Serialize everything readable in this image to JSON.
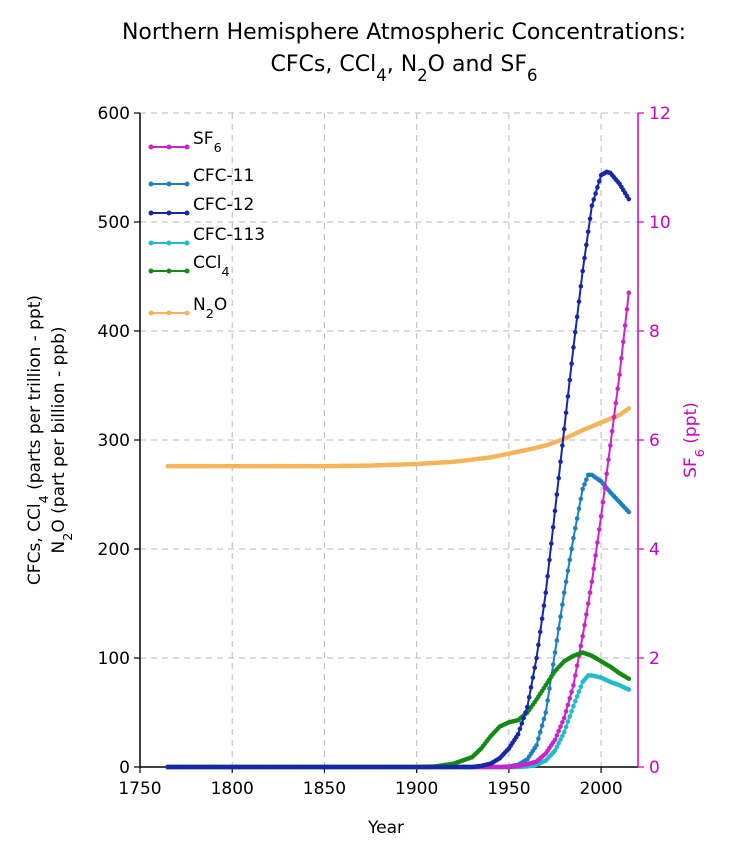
{
  "chart_data": {
    "type": "line",
    "title": "Northern Hemisphere Atmospheric Concentrations:",
    "subtitle": "CFCs, CCl4, N2O and SF6",
    "xlabel": "Year",
    "ylabel_line1": "CFCs, CCl4 (parts per trillion - ppt)",
    "ylabel_line2": "N2O (part per billion - ppb)",
    "y2label": "SF6 (ppt)",
    "xlim": [
      1750,
      2020
    ],
    "ylim": [
      0,
      600
    ],
    "y2lim": [
      0,
      12
    ],
    "x_ticks": [
      1750,
      1800,
      1850,
      1900,
      1950,
      2000
    ],
    "y_ticks": [
      0,
      100,
      200,
      300,
      400,
      500,
      600
    ],
    "y2_ticks": [
      0,
      2,
      4,
      6,
      8,
      10,
      12
    ],
    "grid": true,
    "legend_position": "top-left",
    "series": [
      {
        "name": "SF6",
        "axis": "right",
        "color": "#cc22cc",
        "points": [
          [
            1765,
            0
          ],
          [
            1950,
            0
          ],
          [
            1955,
            0.02
          ],
          [
            1960,
            0.05
          ],
          [
            1965,
            0.1
          ],
          [
            1970,
            0.25
          ],
          [
            1975,
            0.5
          ],
          [
            1980,
            0.9
          ],
          [
            1985,
            1.5
          ],
          [
            1990,
            2.4
          ],
          [
            1995,
            3.4
          ],
          [
            2000,
            4.6
          ],
          [
            2005,
            5.9
          ],
          [
            2010,
            7.2
          ],
          [
            2015,
            8.7
          ]
        ]
      },
      {
        "name": "CFC-11",
        "axis": "left",
        "color": "#1f7ec2",
        "points": [
          [
            1765,
            0
          ],
          [
            1945,
            0
          ],
          [
            1950,
            0.5
          ],
          [
            1955,
            2
          ],
          [
            1960,
            7
          ],
          [
            1965,
            20
          ],
          [
            1970,
            50
          ],
          [
            1975,
            105
          ],
          [
            1980,
            160
          ],
          [
            1985,
            210
          ],
          [
            1990,
            255
          ],
          [
            1993,
            268
          ],
          [
            1995,
            268
          ],
          [
            2000,
            262
          ],
          [
            2005,
            252
          ],
          [
            2010,
            243
          ],
          [
            2015,
            234
          ]
        ]
      },
      {
        "name": "CFC-12",
        "axis": "left",
        "color": "#1428a8",
        "points": [
          [
            1765,
            0
          ],
          [
            1930,
            0
          ],
          [
            1935,
            1
          ],
          [
            1940,
            3
          ],
          [
            1945,
            8
          ],
          [
            1950,
            17
          ],
          [
            1955,
            30
          ],
          [
            1960,
            55
          ],
          [
            1965,
            100
          ],
          [
            1970,
            160
          ],
          [
            1975,
            235
          ],
          [
            1980,
            310
          ],
          [
            1985,
            385
          ],
          [
            1990,
            455
          ],
          [
            1995,
            515
          ],
          [
            2000,
            543
          ],
          [
            2003,
            546
          ],
          [
            2005,
            545
          ],
          [
            2010,
            535
          ],
          [
            2015,
            521
          ]
        ]
      },
      {
        "name": "CFC-113",
        "axis": "left",
        "color": "#22bbcc",
        "points": [
          [
            1765,
            0
          ],
          [
            1955,
            0
          ],
          [
            1960,
            0.5
          ],
          [
            1965,
            2
          ],
          [
            1970,
            6
          ],
          [
            1975,
            15
          ],
          [
            1980,
            32
          ],
          [
            1985,
            56
          ],
          [
            1990,
            78
          ],
          [
            1993,
            84
          ],
          [
            1995,
            84
          ],
          [
            2000,
            82
          ],
          [
            2005,
            78
          ],
          [
            2010,
            75
          ],
          [
            2015,
            71
          ]
        ]
      },
      {
        "name": "CCl4",
        "axis": "left",
        "color": "#138a13",
        "points": [
          [
            1765,
            0
          ],
          [
            1900,
            0
          ],
          [
            1910,
            0.5
          ],
          [
            1920,
            3
          ],
          [
            1930,
            9
          ],
          [
            1935,
            17
          ],
          [
            1940,
            28
          ],
          [
            1945,
            37
          ],
          [
            1950,
            41
          ],
          [
            1955,
            43
          ],
          [
            1960,
            50
          ],
          [
            1965,
            62
          ],
          [
            1970,
            75
          ],
          [
            1975,
            88
          ],
          [
            1980,
            97
          ],
          [
            1985,
            102
          ],
          [
            1990,
            105
          ],
          [
            1995,
            102
          ],
          [
            2000,
            97
          ],
          [
            2005,
            92
          ],
          [
            2010,
            86
          ],
          [
            2015,
            81
          ]
        ]
      },
      {
        "name": "N2O",
        "axis": "left",
        "color": "#f6b45a",
        "points": [
          [
            1765,
            276
          ],
          [
            1800,
            276
          ],
          [
            1850,
            276
          ],
          [
            1875,
            276.5
          ],
          [
            1900,
            278
          ],
          [
            1920,
            280
          ],
          [
            1940,
            284
          ],
          [
            1960,
            291
          ],
          [
            1970,
            295
          ],
          [
            1980,
            301
          ],
          [
            1990,
            309
          ],
          [
            2000,
            316
          ],
          [
            2010,
            323
          ],
          [
            2015,
            329
          ]
        ]
      }
    ]
  }
}
